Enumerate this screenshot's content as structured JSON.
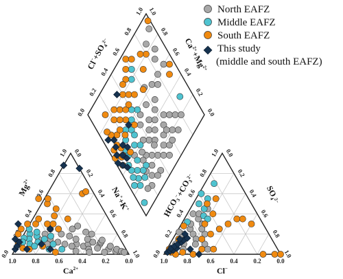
{
  "chart_data": {
    "type": "scatter",
    "subtype": "piper-diagram",
    "colors": {
      "north": "#a8a8a8",
      "middle": "#4fc3d0",
      "south": "#f08a10",
      "this_study": "#16324f",
      "outline": "#222222",
      "grid": "#c8c8c8"
    },
    "legend": {
      "placement": "top-right",
      "items": [
        {
          "key": "north",
          "label": "North EAFZ",
          "marker": "circle"
        },
        {
          "key": "middle",
          "label": "Middle EAFZ",
          "marker": "circle"
        },
        {
          "key": "south",
          "label": "South EAFZ",
          "marker": "circle"
        },
        {
          "key": "this_study",
          "label": "This study",
          "label2": "(middle and south EAFZ)",
          "marker": "diamond"
        }
      ]
    },
    "ticks": [
      "1.0",
      "0.8",
      "0.6",
      "0.4",
      "0.2",
      "0.0"
    ],
    "axis_labels": {
      "cation_bottom": "Ca",
      "cation_bottom_sup": "2+",
      "cation_left": "Mg",
      "cation_left_sup": "2+",
      "cation_right": "Na",
      "cation_right_sup": "+",
      "cation_right2": "+K",
      "cation_right2_sup": "+",
      "anion_bottom": "Cl",
      "anion_bottom_sup": "−",
      "anion_left": "HCO",
      "anion_left_sub": "3",
      "anion_left_sup": "−",
      "anion_left2": "+CO",
      "anion_left2_sub": "3",
      "anion_left2_sup": "2−",
      "anion_right": "SO",
      "anion_right_sub": "4",
      "anion_right_sup": "2−",
      "diamond_left": "Cl",
      "diamond_left_sup": "−",
      "diamond_left2": "+SO",
      "diamond_left2_sub": "4",
      "diamond_left2_sup": "2−",
      "diamond_right": "Ca",
      "diamond_right_sup": "2+",
      "diamond_right2": "+Mg",
      "diamond_right2_sup": "2+"
    },
    "series": {
      "cations": {
        "north": [
          [
            0.35,
            0.08
          ],
          [
            0.3,
            0.1
          ],
          [
            0.25,
            0.12
          ],
          [
            0.2,
            0.1
          ],
          [
            0.15,
            0.05
          ],
          [
            0.18,
            0.12
          ],
          [
            0.28,
            0.15
          ],
          [
            0.22,
            0.2
          ],
          [
            0.4,
            0.1
          ],
          [
            0.45,
            0.08
          ],
          [
            0.5,
            0.1
          ],
          [
            0.38,
            0.15
          ],
          [
            0.32,
            0.05
          ],
          [
            0.12,
            0.08
          ],
          [
            0.1,
            0.03
          ],
          [
            0.08,
            0.05
          ],
          [
            0.05,
            0.03
          ],
          [
            0.03,
            0.02
          ],
          [
            0.26,
            0.22
          ],
          [
            0.42,
            0.18
          ],
          [
            0.55,
            0.12
          ],
          [
            0.6,
            0.15
          ],
          [
            0.65,
            0.1
          ],
          [
            0.48,
            0.2
          ],
          [
            0.36,
            0.25
          ],
          [
            0.3,
            0.28
          ],
          [
            0.7,
            0.15
          ],
          [
            0.55,
            0.25
          ],
          [
            0.62,
            0.2
          ],
          [
            0.2,
            0.02
          ],
          [
            0.24,
            0.06
          ],
          [
            0.16,
            0.14
          ],
          [
            0.33,
            0.02
          ],
          [
            0.44,
            0.03
          ]
        ],
        "middle": [
          [
            0.75,
            0.2
          ],
          [
            0.7,
            0.18
          ],
          [
            0.78,
            0.15
          ],
          [
            0.68,
            0.22
          ],
          [
            0.72,
            0.12
          ],
          [
            0.8,
            0.1
          ],
          [
            0.65,
            0.15
          ],
          [
            0.6,
            0.1
          ],
          [
            0.82,
            0.16
          ],
          [
            0.73,
            0.25
          ],
          [
            0.77,
            0.08
          ],
          [
            0.66,
            0.05
          ],
          [
            0.58,
            0.18
          ],
          [
            0.85,
            0.12
          ],
          [
            0.55,
            0.05
          ]
        ],
        "south": [
          [
            0.8,
            0.25
          ],
          [
            0.72,
            0.3
          ],
          [
            0.65,
            0.3
          ],
          [
            0.85,
            0.2
          ],
          [
            0.9,
            0.1
          ],
          [
            0.55,
            0.3
          ],
          [
            0.45,
            0.5
          ],
          [
            0.5,
            0.55
          ],
          [
            0.4,
            0.45
          ],
          [
            0.45,
            0.38
          ],
          [
            0.6,
            0.35
          ],
          [
            0.5,
            0.3
          ],
          [
            0.35,
            0.35
          ],
          [
            0.88,
            0.06
          ],
          [
            0.7,
            0.08
          ],
          [
            0.62,
            0.02
          ],
          [
            0.42,
            0.55
          ],
          [
            0.48,
            0.25
          ],
          [
            0.83,
            0.05
          ],
          [
            0.1,
            0.6
          ],
          [
            0.06,
            0.62
          ]
        ],
        "this_study": [
          [
            0.95,
            0.05
          ],
          [
            0.92,
            0.08
          ],
          [
            0.88,
            0.12
          ],
          [
            0.8,
            0.3
          ],
          [
            0.7,
            0.1
          ],
          [
            0.55,
            0.25
          ],
          [
            0.65,
            0.05
          ],
          [
            0.12,
            0.88
          ],
          [
            0.0,
            0.85
          ],
          [
            0.9,
            0.15
          ],
          [
            0.85,
            0.05
          ]
        ]
      },
      "anions": {
        "north": [
          [
            0.05,
            0.1
          ],
          [
            0.08,
            0.12
          ],
          [
            0.1,
            0.15
          ],
          [
            0.12,
            0.1
          ],
          [
            0.06,
            0.2
          ],
          [
            0.1,
            0.25
          ],
          [
            0.15,
            0.2
          ],
          [
            0.2,
            0.15
          ],
          [
            0.08,
            0.3
          ],
          [
            0.12,
            0.35
          ],
          [
            0.18,
            0.3
          ],
          [
            0.25,
            0.2
          ],
          [
            0.05,
            0.4
          ],
          [
            0.1,
            0.4
          ],
          [
            0.3,
            0.1
          ],
          [
            0.22,
            0.1
          ],
          [
            0.14,
            0.05
          ],
          [
            0.05,
            0.05
          ],
          [
            0.35,
            0.05
          ],
          [
            0.02,
            0.22
          ],
          [
            0.2,
            0.25
          ],
          [
            0.15,
            0.45
          ]
        ],
        "middle": [
          [
            0.1,
            0.55
          ],
          [
            0.05,
            0.5
          ],
          [
            0.02,
            0.6
          ],
          [
            0.08,
            0.7
          ],
          [
            0.12,
            0.45
          ],
          [
            0.15,
            0.38
          ],
          [
            0.04,
            0.32
          ],
          [
            0.2,
            0.35
          ]
        ],
        "south": [
          [
            0.25,
            0.15
          ],
          [
            0.3,
            0.2
          ],
          [
            0.35,
            0.25
          ],
          [
            0.4,
            0.3
          ],
          [
            0.45,
            0.35
          ],
          [
            0.5,
            0.35
          ],
          [
            0.6,
            0.3
          ],
          [
            0.2,
            0.3
          ],
          [
            0.22,
            0.4
          ],
          [
            0.05,
            0.02
          ],
          [
            0.1,
            0.0
          ],
          [
            0.15,
            0.02
          ],
          [
            0.02,
            0.05
          ],
          [
            0.85,
            0.0
          ],
          [
            0.95,
            0.0
          ],
          [
            1.0,
            0.0
          ],
          [
            0.25,
            0.0
          ],
          [
            0.3,
            0.05
          ],
          [
            0.4,
            0.05
          ],
          [
            0.12,
            0.5
          ],
          [
            0.17,
            0.55
          ],
          [
            0.05,
            0.15
          ],
          [
            0.03,
            0.28
          ]
        ],
        "this_study": [
          [
            0.02,
            0.02
          ],
          [
            0.04,
            0.03
          ],
          [
            0.06,
            0.04
          ],
          [
            0.08,
            0.06
          ],
          [
            0.03,
            0.06
          ],
          [
            0.05,
            0.08
          ],
          [
            0.07,
            0.1
          ],
          [
            0.09,
            0.12
          ],
          [
            0.1,
            0.14
          ],
          [
            0.12,
            0.16
          ],
          [
            0.06,
            0.15
          ],
          [
            0.08,
            0.2
          ],
          [
            0.3,
            0.0
          ],
          [
            0.2,
            0.05
          ]
        ]
      },
      "diamond": {
        "north": [
          [
            0.45,
            0.3
          ],
          [
            0.5,
            0.35
          ],
          [
            0.55,
            0.25
          ],
          [
            0.6,
            0.3
          ],
          [
            0.4,
            0.2
          ],
          [
            0.35,
            0.25
          ],
          [
            0.3,
            0.3
          ],
          [
            0.5,
            0.45
          ],
          [
            0.65,
            0.35
          ],
          [
            0.45,
            0.4
          ],
          [
            0.55,
            0.4
          ],
          [
            0.6,
            0.45
          ],
          [
            0.7,
            0.3
          ],
          [
            0.4,
            0.35
          ],
          [
            0.35,
            0.4
          ],
          [
            0.3,
            0.2
          ],
          [
            0.25,
            0.15
          ],
          [
            0.2,
            0.1
          ],
          [
            0.25,
            0.3
          ],
          [
            0.45,
            0.15
          ],
          [
            0.5,
            0.2
          ],
          [
            0.55,
            0.15
          ],
          [
            0.65,
            0.2
          ],
          [
            0.7,
            0.15
          ],
          [
            0.75,
            0.25
          ],
          [
            0.6,
            0.15
          ],
          [
            0.35,
            0.1
          ],
          [
            0.15,
            0.12
          ],
          [
            0.4,
            0.5
          ],
          [
            0.55,
            0.55
          ],
          [
            0.45,
            0.55
          ],
          [
            0.65,
            0.5
          ],
          [
            0.3,
            0.1
          ],
          [
            0.6,
            0.25
          ],
          [
            0.8,
            0.2
          ],
          [
            0.5,
            0.1
          ],
          [
            0.42,
            0.28
          ],
          [
            0.28,
            0.35
          ],
          [
            0.22,
            0.22
          ],
          [
            0.2,
            0.4
          ],
          [
            0.7,
            0.6
          ],
          [
            0.62,
            0.65
          ],
          [
            0.8,
            0.6
          ],
          [
            0.9,
            0.6
          ],
          [
            0.85,
            0.7
          ],
          [
            0.95,
            0.9
          ],
          [
            0.85,
            0.85
          ],
          [
            0.75,
            0.55
          ],
          [
            0.9,
            0.75
          ]
        ],
        "middle": [
          [
            0.25,
            0.6
          ],
          [
            0.2,
            0.55
          ],
          [
            0.3,
            0.55
          ],
          [
            0.15,
            0.5
          ],
          [
            0.25,
            0.45
          ],
          [
            0.2,
            0.35
          ],
          [
            0.15,
            0.3
          ],
          [
            0.1,
            0.4
          ],
          [
            0.3,
            0.5
          ],
          [
            0.35,
            0.6
          ],
          [
            0.12,
            0.25
          ],
          [
            0.18,
            0.2
          ],
          [
            0.25,
            0.25
          ],
          [
            0.08,
            0.3
          ],
          [
            0.1,
            0.2
          ],
          [
            0.3,
            0.4
          ],
          [
            0.45,
            0.6
          ],
          [
            0.05,
            0.25
          ],
          [
            0.15,
            0.45
          ],
          [
            0.55,
            0.8
          ],
          [
            0.2,
            0.25
          ],
          [
            0.6,
            0.85
          ],
          [
            0.88,
            0.3
          ],
          [
            0.4,
            0.65
          ],
          [
            0.05,
            0.08
          ],
          [
            0.1,
            0.35
          ]
        ],
        "south": [
          [
            0.15,
            0.65
          ],
          [
            0.1,
            0.7
          ],
          [
            0.2,
            0.75
          ],
          [
            0.25,
            0.8
          ],
          [
            0.05,
            0.6
          ],
          [
            0.12,
            0.55
          ],
          [
            0.3,
            0.75
          ],
          [
            0.35,
            0.7
          ],
          [
            0.08,
            0.5
          ],
          [
            0.2,
            0.65
          ],
          [
            0.4,
            0.8
          ],
          [
            0.45,
            0.75
          ],
          [
            0.5,
            0.85
          ],
          [
            0.55,
            0.9
          ],
          [
            0.6,
            0.95
          ],
          [
            0.5,
            0.7
          ],
          [
            0.3,
            0.65
          ],
          [
            0.35,
            0.55
          ],
          [
            0.1,
            0.6
          ],
          [
            0.18,
            0.45
          ],
          [
            0.02,
            0.55
          ],
          [
            0.08,
            0.75
          ],
          [
            0.15,
            0.85
          ],
          [
            0.6,
            0.65
          ],
          [
            0.45,
            0.85
          ],
          [
            0.25,
            0.7
          ],
          [
            0.05,
            0.45
          ],
          [
            0.1,
            0.5
          ],
          [
            0.22,
            0.58
          ],
          [
            0.4,
            0.7
          ],
          [
            0.65,
            0.9
          ],
          [
            0.7,
            0.75
          ],
          [
            0.8,
            0.8
          ],
          [
            0.98,
            0.95
          ],
          [
            0.9,
            0.5
          ],
          [
            0.95,
            0.55
          ],
          [
            0.75,
            0.85
          ]
        ],
        "this_study": [
          [
            0.05,
            0.55
          ],
          [
            0.08,
            0.6
          ],
          [
            0.1,
            0.5
          ],
          [
            0.12,
            0.45
          ],
          [
            0.15,
            0.55
          ],
          [
            0.05,
            0.45
          ],
          [
            0.02,
            0.5
          ],
          [
            0.08,
            0.4
          ],
          [
            0.18,
            0.5
          ],
          [
            0.1,
            0.65
          ],
          [
            0.3,
            0.6
          ],
          [
            0.35,
            0.85
          ],
          [
            0.05,
            0.7
          ]
        ]
      }
    }
  }
}
